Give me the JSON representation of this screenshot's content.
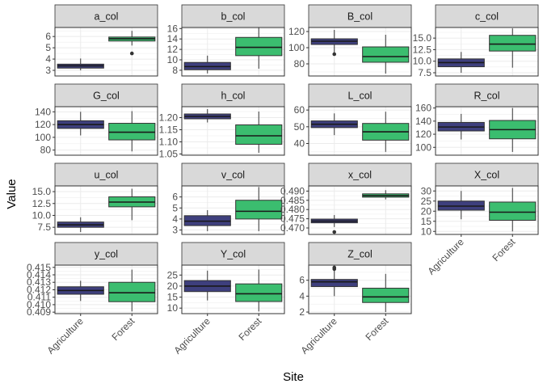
{
  "chart_data": {
    "type": "boxplot",
    "xlabel": "Site",
    "ylabel": "Value",
    "categories": [
      "Agriculture",
      "Forest"
    ],
    "colors": {
      "Agriculture": "#3e3f7d",
      "Forest": "#3bbd6f",
      "strip": "#d9d9d9",
      "grid": "#ebebeb",
      "border": "#333333"
    },
    "grid": true,
    "legend": "none",
    "facets": [
      {
        "name": "a_col",
        "ylim": [
          2.5,
          6.8
        ],
        "yticks": [
          3,
          4,
          5,
          6
        ],
        "ytick_labels": [
          "3",
          "4",
          "5",
          "6"
        ],
        "boxes": [
          {
            "category": "Agriculture",
            "min": 3.0,
            "q1": 3.2,
            "median": 3.4,
            "q3": 3.55,
            "max": 4.05,
            "outliers": []
          },
          {
            "category": "Forest",
            "min": 5.2,
            "q1": 5.6,
            "median": 5.8,
            "q3": 5.95,
            "max": 6.5,
            "outliers": [
              4.5
            ]
          }
        ]
      },
      {
        "name": "b_col",
        "ylim": [
          6.9,
          16.2
        ],
        "yticks": [
          8,
          10,
          12,
          14,
          16
        ],
        "ytick_labels": [
          "8",
          "10",
          "12",
          "14",
          "16"
        ],
        "boxes": [
          {
            "category": "Agriculture",
            "min": 7.4,
            "q1": 8.1,
            "median": 8.7,
            "q3": 9.5,
            "max": 10.8,
            "outliers": []
          },
          {
            "category": "Forest",
            "min": 8.3,
            "q1": 10.8,
            "median": 12.4,
            "q3": 14.3,
            "max": 16.2,
            "outliers": []
          }
        ]
      },
      {
        "name": "B_col",
        "ylim": [
          65,
          125
        ],
        "yticks": [
          80,
          100,
          120
        ],
        "ytick_labels": [
          "80",
          "100",
          "120"
        ],
        "boxes": [
          {
            "category": "Agriculture",
            "min": 92,
            "q1": 104,
            "median": 108,
            "q3": 111,
            "max": 122,
            "outliers": [
              92
            ]
          },
          {
            "category": "Forest",
            "min": 68,
            "q1": 82,
            "median": 89,
            "q3": 101,
            "max": 116,
            "outliers": []
          }
        ]
      },
      {
        "name": "c_col",
        "ylim": [
          6.8,
          17.3
        ],
        "yticks": [
          7.5,
          10.0,
          12.5,
          15.0
        ],
        "ytick_labels": [
          "7.5",
          "10.0",
          "12.5",
          "15.0"
        ],
        "boxes": [
          {
            "category": "Agriculture",
            "min": 7.5,
            "q1": 8.8,
            "median": 9.7,
            "q3": 10.5,
            "max": 12.0,
            "outliers": []
          },
          {
            "category": "Forest",
            "min": 8.6,
            "q1": 12.2,
            "median": 13.7,
            "q3": 15.6,
            "max": 17.1,
            "outliers": []
          }
        ]
      },
      {
        "name": "G_col",
        "ylim": [
          72,
          148
        ],
        "yticks": [
          80,
          100,
          120,
          140
        ],
        "ytick_labels": [
          "80",
          "100",
          "120",
          "140"
        ],
        "boxes": [
          {
            "category": "Agriculture",
            "min": 103,
            "q1": 114,
            "median": 120,
            "q3": 126,
            "max": 140,
            "outliers": []
          },
          {
            "category": "Forest",
            "min": 78,
            "q1": 96,
            "median": 108,
            "q3": 122,
            "max": 141,
            "outliers": []
          }
        ]
      },
      {
        "name": "h_col",
        "ylim": [
          1.045,
          1.245
        ],
        "yticks": [
          1.05,
          1.1,
          1.15,
          1.2
        ],
        "ytick_labels": [
          "1.05",
          "1.10",
          "1.15",
          "1.20"
        ],
        "boxes": [
          {
            "category": "Agriculture",
            "min": 1.18,
            "q1": 1.195,
            "median": 1.205,
            "q3": 1.215,
            "max": 1.235,
            "outliers": []
          },
          {
            "category": "Forest",
            "min": 1.055,
            "q1": 1.09,
            "median": 1.125,
            "q3": 1.17,
            "max": 1.225,
            "outliers": []
          }
        ]
      },
      {
        "name": "L_col",
        "ylim": [
          33,
          62
        ],
        "yticks": [
          40,
          50,
          60
        ],
        "ytick_labels": [
          "40",
          "50",
          "60"
        ],
        "boxes": [
          {
            "category": "Agriculture",
            "min": 45,
            "q1": 49.5,
            "median": 51.5,
            "q3": 53.5,
            "max": 58,
            "outliers": []
          },
          {
            "category": "Forest",
            "min": 35,
            "q1": 42,
            "median": 47,
            "q3": 52,
            "max": 59,
            "outliers": []
          }
        ]
      },
      {
        "name": "R_col",
        "ylim": [
          88,
          162
        ],
        "yticks": [
          100,
          120,
          140,
          160
        ],
        "ytick_labels": [
          "100",
          "120",
          "140",
          "160"
        ],
        "boxes": [
          {
            "category": "Agriculture",
            "min": 112,
            "q1": 125,
            "median": 131,
            "q3": 138,
            "max": 151,
            "outliers": []
          },
          {
            "category": "Forest",
            "min": 93,
            "q1": 113,
            "median": 127,
            "q3": 141,
            "max": 160,
            "outliers": []
          }
        ]
      },
      {
        "name": "u_col",
        "ylim": [
          6.0,
          16.2
        ],
        "yticks": [
          7.5,
          10.0,
          12.5,
          15.0
        ],
        "ytick_labels": [
          "7.5",
          "10.0",
          "12.5",
          "15.0"
        ],
        "boxes": [
          {
            "category": "Agriculture",
            "min": 6.5,
            "q1": 7.5,
            "median": 8.0,
            "q3": 8.6,
            "max": 9.6,
            "outliers": []
          },
          {
            "category": "Forest",
            "min": 9.0,
            "q1": 11.8,
            "median": 12.8,
            "q3": 13.9,
            "max": 15.6,
            "outliers": []
          }
        ]
      },
      {
        "name": "v_col",
        "ylim": [
          2.6,
          7.0
        ],
        "yticks": [
          3,
          4,
          5,
          6
        ],
        "ytick_labels": [
          "3",
          "4",
          "5",
          "6"
        ],
        "boxes": [
          {
            "category": "Agriculture",
            "min": 2.9,
            "q1": 3.4,
            "median": 3.8,
            "q3": 4.3,
            "max": 4.8,
            "outliers": []
          },
          {
            "category": "Forest",
            "min": 2.9,
            "q1": 4.0,
            "median": 4.7,
            "q3": 5.7,
            "max": 6.9,
            "outliers": []
          }
        ]
      },
      {
        "name": "x_col",
        "ylim": [
          0.4665,
          0.4928
        ],
        "yticks": [
          0.47,
          0.475,
          0.48,
          0.485,
          0.49
        ],
        "ytick_labels": [
          "0.470",
          "0.475",
          "0.480",
          "0.485",
          "0.490"
        ],
        "boxes": [
          {
            "category": "Agriculture",
            "min": 0.4705,
            "q1": 0.4728,
            "median": 0.4737,
            "q3": 0.4748,
            "max": 0.477,
            "outliers": [
              0.4678
            ]
          },
          {
            "category": "Forest",
            "min": 0.4855,
            "q1": 0.4867,
            "median": 0.4875,
            "q3": 0.4885,
            "max": 0.4905,
            "outliers": []
          }
        ]
      },
      {
        "name": "X_col",
        "ylim": [
          8.5,
          32.5
        ],
        "yticks": [
          10,
          15,
          20,
          25,
          30
        ],
        "ytick_labels": [
          "10",
          "15",
          "20",
          "25",
          "30"
        ],
        "boxes": [
          {
            "category": "Agriculture",
            "min": 16,
            "q1": 20.5,
            "median": 22.5,
            "q3": 25,
            "max": 30,
            "outliers": []
          },
          {
            "category": "Forest",
            "min": 10,
            "q1": 15.5,
            "median": 19.5,
            "q3": 24.5,
            "max": 31.5,
            "outliers": []
          }
        ]
      },
      {
        "name": "y_col",
        "ylim": [
          0.4088,
          0.4153
        ],
        "yticks": [
          0.409,
          0.41,
          0.411,
          0.412,
          0.413,
          0.414,
          0.415
        ],
        "ytick_labels": [
          "0.409",
          "0.410",
          "0.411",
          "0.412",
          "0.413",
          "0.414",
          "0.415"
        ],
        "boxes": [
          {
            "category": "Agriculture",
            "min": 0.4105,
            "q1": 0.4114,
            "median": 0.4119,
            "q3": 0.4124,
            "max": 0.4132,
            "outliers": []
          },
          {
            "category": "Forest",
            "min": 0.4091,
            "q1": 0.4104,
            "median": 0.4116,
            "q3": 0.413,
            "max": 0.4147,
            "outliers": []
          }
        ]
      },
      {
        "name": "Y_col",
        "ylim": [
          7.5,
          29.5
        ],
        "yticks": [
          10,
          15,
          20,
          25
        ],
        "ytick_labels": [
          "10",
          "15",
          "20",
          "25"
        ],
        "boxes": [
          {
            "category": "Agriculture",
            "min": 13.5,
            "q1": 17.5,
            "median": 20,
            "q3": 22.5,
            "max": 27,
            "outliers": []
          },
          {
            "category": "Forest",
            "min": 8.5,
            "q1": 13,
            "median": 16.5,
            "q3": 21,
            "max": 27.5,
            "outliers": []
          }
        ]
      },
      {
        "name": "Z_col",
        "ylim": [
          1.8,
          7.9
        ],
        "yticks": [
          2,
          4,
          6
        ],
        "ytick_labels": [
          "2",
          "4",
          "6"
        ],
        "boxes": [
          {
            "category": "Agriculture",
            "min": 4.0,
            "q1": 5.2,
            "median": 5.8,
            "q3": 6.1,
            "max": 7.2,
            "outliers": [
              7.4,
              7.6
            ]
          },
          {
            "category": "Forest",
            "min": 2.0,
            "q1": 3.2,
            "median": 3.9,
            "q3": 5.0,
            "max": 6.8,
            "outliers": []
          }
        ]
      }
    ]
  }
}
